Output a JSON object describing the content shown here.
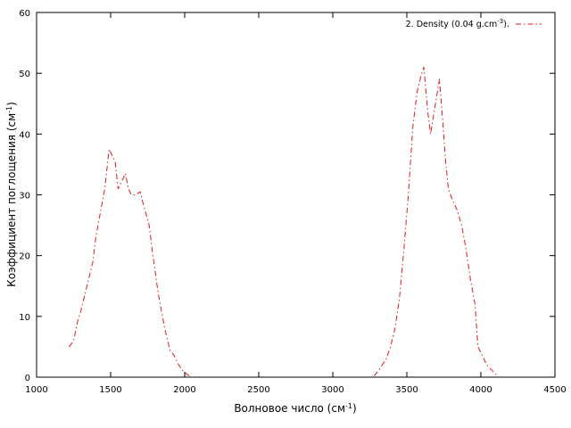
{
  "chart_data": {
    "type": "line",
    "xlabel_main": "Волновое число (см",
    "xlabel_sup": "-1",
    "xlabel_tail": ")",
    "ylabel_main": "Коэффициент поглощения (см",
    "ylabel_sup": "-1",
    "ylabel_tail": ")",
    "xlim": [
      1000,
      4500
    ],
    "ylim": [
      0,
      60
    ],
    "xticks": [
      1000,
      1500,
      2000,
      2500,
      3000,
      3500,
      4000,
      4500
    ],
    "yticks": [
      0,
      10,
      20,
      30,
      40,
      50,
      60
    ],
    "grid": false,
    "legend_position": "top-right",
    "legend_main": "2. Density (0.04 g.cm",
    "legend_sup": "-3",
    "legend_tail": ").",
    "series": [
      {
        "name": "2. Density (0.04 g.cm-3).",
        "color": "#e41a1c",
        "line_style": "dash-dot",
        "segments": [
          [
            [
              1220,
              5
            ],
            [
              1250,
              6
            ],
            [
              1275,
              9
            ],
            [
              1300,
              11
            ],
            [
              1330,
              14
            ],
            [
              1360,
              17
            ],
            [
              1380,
              19
            ],
            [
              1400,
              23
            ],
            [
              1430,
              27
            ],
            [
              1460,
              31
            ],
            [
              1490,
              37.5
            ],
            [
              1510,
              36.5
            ],
            [
              1530,
              35.5
            ],
            [
              1550,
              31
            ],
            [
              1580,
              32.5
            ],
            [
              1600,
              33.5
            ],
            [
              1620,
              31
            ],
            [
              1640,
              30
            ],
            [
              1670,
              30
            ],
            [
              1700,
              30.5
            ],
            [
              1720,
              28.5
            ],
            [
              1760,
              25
            ],
            [
              1780,
              21
            ],
            [
              1820,
              14
            ],
            [
              1850,
              10
            ],
            [
              1870,
              7.5
            ],
            [
              1900,
              4.5
            ],
            [
              1930,
              3.5
            ],
            [
              1960,
              2
            ],
            [
              1990,
              1
            ],
            [
              2030,
              0.2
            ]
          ],
          [
            [
              3280,
              0.2
            ],
            [
              3320,
              1.5
            ],
            [
              3360,
              3
            ],
            [
              3390,
              5
            ],
            [
              3420,
              8
            ],
            [
              3450,
              13
            ],
            [
              3480,
              21
            ],
            [
              3510,
              30
            ],
            [
              3540,
              41
            ],
            [
              3570,
              47
            ],
            [
              3600,
              50
            ],
            [
              3615,
              51
            ],
            [
              3640,
              44
            ],
            [
              3660,
              40
            ],
            [
              3680,
              43
            ],
            [
              3700,
              46
            ],
            [
              3720,
              49
            ],
            [
              3740,
              43
            ],
            [
              3760,
              36
            ],
            [
              3780,
              31
            ],
            [
              3810,
              29
            ],
            [
              3840,
              27.5
            ],
            [
              3870,
              25
            ],
            [
              3900,
              21
            ],
            [
              3930,
              16
            ],
            [
              3960,
              12
            ],
            [
              3980,
              5
            ],
            [
              4010,
              3.5
            ],
            [
              4040,
              2
            ],
            [
              4080,
              1
            ],
            [
              4110,
              0.2
            ]
          ]
        ]
      }
    ]
  }
}
